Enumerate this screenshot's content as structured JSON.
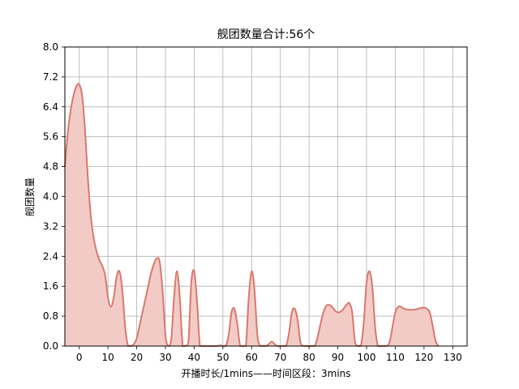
{
  "chart_data": {
    "type": "area",
    "title": "舰团数量合计:56个",
    "xlabel": "开播时长/1mins——时间区段：3mins",
    "ylabel": "舰团数量",
    "xlim": [
      -5,
      135
    ],
    "ylim": [
      0,
      8
    ],
    "xticks": [
      0,
      10,
      20,
      30,
      40,
      50,
      60,
      70,
      80,
      90,
      100,
      110,
      120,
      130
    ],
    "yticks": [
      "0.0",
      "0.8",
      "1.6",
      "2.4",
      "3.2",
      "4.0",
      "4.8",
      "5.6",
      "6.4",
      "7.2",
      "8.0"
    ],
    "grid": true,
    "colors": {
      "line": "#d9786d",
      "fill": "#f2cbc7"
    },
    "x": [
      -5,
      -4,
      -3,
      -2,
      -1,
      0,
      1,
      2,
      3,
      4,
      5,
      6,
      7,
      8,
      9,
      10,
      11,
      12,
      13,
      14,
      15,
      16,
      17,
      18,
      19,
      20,
      21,
      22,
      23,
      24,
      25,
      26,
      27,
      28,
      29,
      30,
      31,
      32,
      33,
      34,
      35,
      36,
      37,
      38,
      39,
      40,
      41,
      42,
      43,
      44,
      45,
      46,
      47,
      48,
      49,
      50,
      51,
      52,
      53,
      54,
      55,
      56,
      57,
      58,
      59,
      60,
      61,
      62,
      63,
      64,
      65,
      66,
      67,
      68,
      69,
      70,
      71,
      72,
      73,
      74,
      75,
      76,
      77,
      78,
      79,
      80,
      81,
      82,
      83,
      84,
      85,
      86,
      87,
      88,
      89,
      90,
      91,
      92,
      93,
      94,
      95,
      96,
      97,
      98,
      99,
      100,
      101,
      102,
      103,
      104,
      105,
      106,
      107,
      108,
      109,
      110,
      111,
      112,
      113,
      114,
      115,
      116,
      117,
      118,
      119,
      120,
      121,
      122,
      123,
      124,
      125
    ],
    "y": [
      4.8,
      5.7,
      6.3,
      6.7,
      6.95,
      7.0,
      6.7,
      5.8,
      4.5,
      3.5,
      2.9,
      2.55,
      2.3,
      2.15,
      1.9,
      1.3,
      1.05,
      1.3,
      1.85,
      2.0,
      1.5,
      0.5,
      0.0,
      0.0,
      0.05,
      0.2,
      0.55,
      0.9,
      1.25,
      1.6,
      1.95,
      2.2,
      2.35,
      2.25,
      1.5,
      0.3,
      0.0,
      0.15,
      1.3,
      2.0,
      1.3,
      0.0,
      0.0,
      0.1,
      1.7,
      2.0,
      1.2,
      0.0,
      0.0,
      0.0,
      0.0,
      0.0,
      0.0,
      0.0,
      0.02,
      0.0,
      0.0,
      0.3,
      0.9,
      1.0,
      0.6,
      0.0,
      0.0,
      0.0,
      1.3,
      2.0,
      1.5,
      0.3,
      0.0,
      0.0,
      0.0,
      0.05,
      0.12,
      0.05,
      0.0,
      0.0,
      0.0,
      0.0,
      0.35,
      0.9,
      1.0,
      0.7,
      0.1,
      0.0,
      0.0,
      0.0,
      0.0,
      0.0,
      0.25,
      0.6,
      0.9,
      1.08,
      1.1,
      1.05,
      0.95,
      0.9,
      0.92,
      1.0,
      1.1,
      1.15,
      0.9,
      0.1,
      0.0,
      0.0,
      0.6,
      1.7,
      2.0,
      1.6,
      0.5,
      0.0,
      0.0,
      0.0,
      0.0,
      0.1,
      0.5,
      0.9,
      1.05,
      1.05,
      1.0,
      0.98,
      0.97,
      0.97,
      0.98,
      1.0,
      1.02,
      1.03,
      1.0,
      0.9,
      0.55,
      0.15,
      0.0
    ]
  }
}
